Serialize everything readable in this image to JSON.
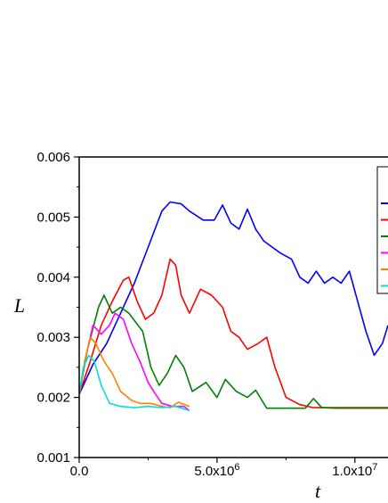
{
  "chart_data": {
    "type": "line",
    "title": "",
    "xlabel": "t",
    "ylabel": "L",
    "xlim": [
      0,
      11200000
    ],
    "ylim": [
      0.001,
      0.006
    ],
    "x_ticks": [
      {
        "value": 0,
        "label": "0.0"
      },
      {
        "value": 5000000,
        "label": "5.0x10^6"
      },
      {
        "value": 10000000,
        "label": "1.0x10^7"
      }
    ],
    "y_ticks": [
      {
        "value": 0.001,
        "label": "0.001"
      },
      {
        "value": 0.002,
        "label": "0.002"
      },
      {
        "value": 0.003,
        "label": "0.003"
      },
      {
        "value": 0.004,
        "label": "0.004"
      },
      {
        "value": 0.005,
        "label": "0.005"
      },
      {
        "value": 0.006,
        "label": "0.006"
      }
    ],
    "grid": false,
    "legend": {
      "placement": "top-right",
      "clipped": true
    },
    "series": [
      {
        "color": "#0000ff",
        "points": [
          [
            0,
            0.00205
          ],
          [
            500000,
            0.00255
          ],
          [
            1000000,
            0.0029
          ],
          [
            1500000,
            0.0034
          ],
          [
            2000000,
            0.0039
          ],
          [
            2500000,
            0.0045
          ],
          [
            3000000,
            0.0051
          ],
          [
            3300000,
            0.00525
          ],
          [
            3700000,
            0.00522
          ],
          [
            4000000,
            0.0051
          ],
          [
            4500000,
            0.00495
          ],
          [
            4900000,
            0.00495
          ],
          [
            5200000,
            0.0052
          ],
          [
            5500000,
            0.0049
          ],
          [
            5800000,
            0.0048
          ],
          [
            6100000,
            0.00513
          ],
          [
            6400000,
            0.0048
          ],
          [
            6700000,
            0.0046
          ],
          [
            7000000,
            0.0045
          ],
          [
            7300000,
            0.0044
          ],
          [
            7700000,
            0.0043
          ],
          [
            8000000,
            0.004
          ],
          [
            8300000,
            0.0039
          ],
          [
            8600000,
            0.0041
          ],
          [
            8900000,
            0.0039
          ],
          [
            9200000,
            0.004
          ],
          [
            9500000,
            0.0039
          ],
          [
            9800000,
            0.0041
          ],
          [
            10100000,
            0.0036
          ],
          [
            10400000,
            0.0031
          ],
          [
            10700000,
            0.0027
          ],
          [
            11000000,
            0.0029
          ],
          [
            11200000,
            0.0032
          ]
        ]
      },
      {
        "color": "#ff0000",
        "points": [
          [
            0,
            0.00205
          ],
          [
            400000,
            0.0026
          ],
          [
            800000,
            0.0032
          ],
          [
            1200000,
            0.0036
          ],
          [
            1600000,
            0.00395
          ],
          [
            1800000,
            0.004
          ],
          [
            2100000,
            0.0036
          ],
          [
            2400000,
            0.0033
          ],
          [
            2700000,
            0.0034
          ],
          [
            3000000,
            0.0037
          ],
          [
            3300000,
            0.0043
          ],
          [
            3500000,
            0.0042
          ],
          [
            3700000,
            0.0037
          ],
          [
            4000000,
            0.0034
          ],
          [
            4400000,
            0.0038
          ],
          [
            4800000,
            0.0037
          ],
          [
            5200000,
            0.0035
          ],
          [
            5500000,
            0.0031
          ],
          [
            5800000,
            0.003
          ],
          [
            6100000,
            0.0028
          ],
          [
            6500000,
            0.0029
          ],
          [
            6800000,
            0.003
          ],
          [
            7100000,
            0.0025
          ],
          [
            7500000,
            0.002
          ],
          [
            8000000,
            0.00188
          ],
          [
            8500000,
            0.00183
          ],
          [
            9000000,
            0.00183
          ],
          [
            10000000,
            0.00183
          ],
          [
            11200000,
            0.00183
          ]
        ]
      },
      {
        "color": "#008000",
        "points": [
          [
            0,
            0.00205
          ],
          [
            300000,
            0.0028
          ],
          [
            700000,
            0.0035
          ],
          [
            900000,
            0.0037
          ],
          [
            1200000,
            0.0034
          ],
          [
            1500000,
            0.0035
          ],
          [
            1800000,
            0.0034
          ],
          [
            2300000,
            0.0031
          ],
          [
            2600000,
            0.0025
          ],
          [
            2900000,
            0.0022
          ],
          [
            3200000,
            0.0024
          ],
          [
            3500000,
            0.0027
          ],
          [
            3800000,
            0.0025
          ],
          [
            4100000,
            0.0021
          ],
          [
            4600000,
            0.00225
          ],
          [
            5000000,
            0.002
          ],
          [
            5300000,
            0.0023
          ],
          [
            5700000,
            0.0021
          ],
          [
            6100000,
            0.002
          ],
          [
            6400000,
            0.00212
          ],
          [
            6800000,
            0.00182
          ],
          [
            7500000,
            0.00182
          ],
          [
            8200000,
            0.00182
          ],
          [
            8500000,
            0.00198
          ],
          [
            8800000,
            0.00183
          ],
          [
            9300000,
            0.00182
          ],
          [
            10000000,
            0.00182
          ],
          [
            11200000,
            0.00182
          ]
        ]
      },
      {
        "color": "#ff00ff",
        "points": [
          [
            0,
            0.00205
          ],
          [
            200000,
            0.0026
          ],
          [
            500000,
            0.0032
          ],
          [
            800000,
            0.00305
          ],
          [
            1100000,
            0.0032
          ],
          [
            1300000,
            0.0034
          ],
          [
            1600000,
            0.0033
          ],
          [
            1900000,
            0.0029
          ],
          [
            2200000,
            0.0026
          ],
          [
            2500000,
            0.00225
          ],
          [
            2700000,
            0.0021
          ],
          [
            3000000,
            0.0019
          ],
          [
            3400000,
            0.00185
          ],
          [
            3800000,
            0.00185
          ],
          [
            4000000,
            0.00178
          ]
        ]
      },
      {
        "color": "#ff8000",
        "points": [
          [
            0,
            0.00205
          ],
          [
            200000,
            0.0026
          ],
          [
            400000,
            0.003
          ],
          [
            600000,
            0.0029
          ],
          [
            900000,
            0.0026
          ],
          [
            1200000,
            0.0024
          ],
          [
            1500000,
            0.0021
          ],
          [
            1900000,
            0.00195
          ],
          [
            2200000,
            0.0019
          ],
          [
            2600000,
            0.0019
          ],
          [
            3000000,
            0.00185
          ],
          [
            3300000,
            0.00183
          ],
          [
            3600000,
            0.00192
          ],
          [
            4000000,
            0.00185
          ]
        ]
      },
      {
        "color": "#00e0e0",
        "points": [
          [
            0,
            0.00205
          ],
          [
            150000,
            0.0025
          ],
          [
            350000,
            0.0027
          ],
          [
            550000,
            0.0026
          ],
          [
            800000,
            0.0022
          ],
          [
            1100000,
            0.0019
          ],
          [
            1500000,
            0.00185
          ],
          [
            2000000,
            0.00183
          ],
          [
            2500000,
            0.00185
          ],
          [
            3000000,
            0.00183
          ],
          [
            3500000,
            0.00185
          ],
          [
            4000000,
            0.00178
          ]
        ]
      }
    ]
  }
}
